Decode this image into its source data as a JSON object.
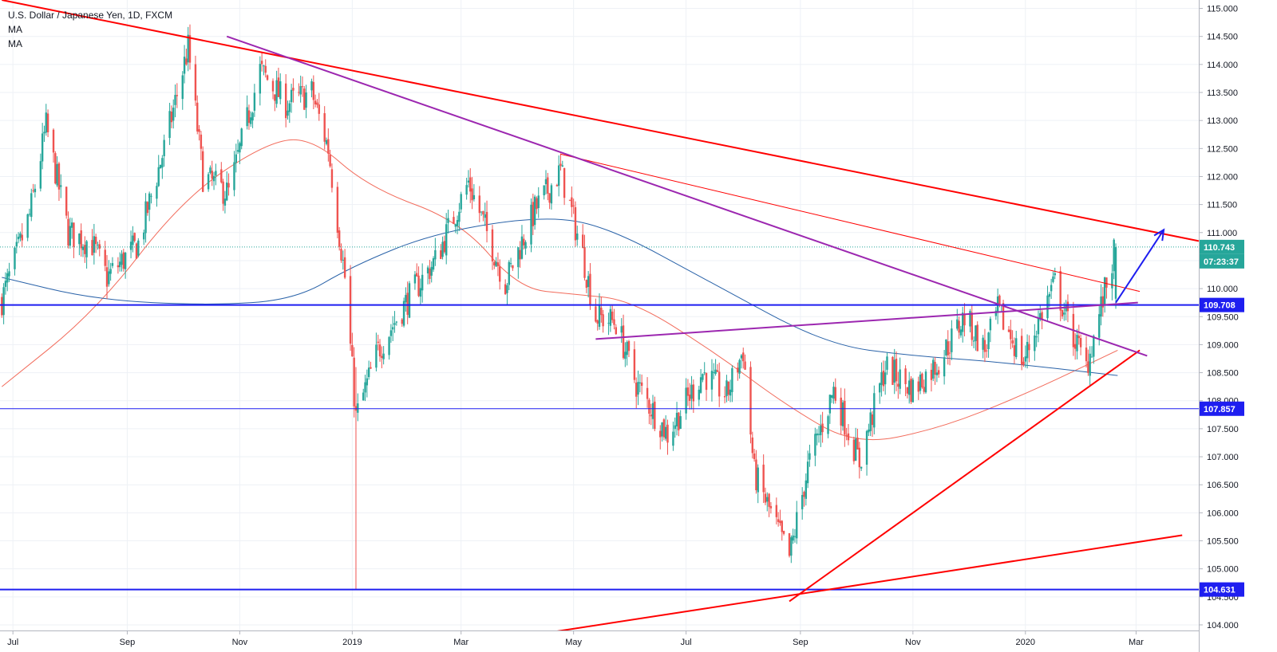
{
  "legend": {
    "symbol": "U.S. Dollar / Japanese Yen, 1D, FXCM",
    "indicators": [
      "MA",
      "MA"
    ]
  },
  "colors": {
    "up": "#26a69a",
    "down": "#ef5350",
    "trend_red": "#ff0000",
    "trend_purple": "#9c27b0",
    "ma_fast": "#f26b5b",
    "ma_slow": "#2962a8",
    "level_blue": "#1e1ef0",
    "last_price": "#26a69a"
  },
  "chart_data": {
    "type": "candlestick",
    "title": "U.S. Dollar / Japanese Yen, 1D, FXCM",
    "x_axis": {
      "ticks": [
        "Jul",
        "Sep",
        "Nov",
        "2019",
        "Mar",
        "May",
        "Jul",
        "Sep",
        "Nov",
        "2020",
        "Mar"
      ],
      "range": [
        "2018-06-24",
        "2020-04-04"
      ]
    },
    "y_axis": {
      "range": [
        103.9,
        115.15
      ],
      "ticks": [
        "115.000",
        "114.500",
        "114.000",
        "113.500",
        "113.000",
        "112.500",
        "112.000",
        "111.500",
        "111.000",
        "110.500",
        "110.000",
        "109.500",
        "109.000",
        "108.500",
        "108.000",
        "107.500",
        "107.000",
        "106.500",
        "106.000",
        "105.500",
        "105.000",
        "104.500",
        "104.000"
      ],
      "position": "right"
    },
    "price_path": [
      [
        "2018-06-25",
        109.8
      ],
      [
        "2018-07-10",
        111.3
      ],
      [
        "2018-07-19",
        112.9
      ],
      [
        "2018-07-31",
        111.0
      ],
      [
        "2018-08-13",
        110.8
      ],
      [
        "2018-08-21",
        110.2
      ],
      [
        "2018-09-07",
        110.8
      ],
      [
        "2018-09-21",
        112.5
      ],
      [
        "2018-10-04",
        114.3
      ],
      [
        "2018-10-12",
        112.0
      ],
      [
        "2018-10-26",
        111.7
      ],
      [
        "2018-11-12",
        113.9
      ],
      [
        "2018-11-26",
        113.3
      ],
      [
        "2018-12-10",
        113.5
      ],
      [
        "2018-12-19",
        112.5
      ],
      [
        "2018-12-28",
        110.2
      ],
      [
        "2019-01-03",
        107.7
      ],
      [
        "2019-01-15",
        108.9
      ],
      [
        "2019-01-31",
        109.8
      ],
      [
        "2019-02-15",
        110.5
      ],
      [
        "2019-03-05",
        111.9
      ],
      [
        "2019-03-25",
        110.1
      ],
      [
        "2019-04-10",
        111.4
      ],
      [
        "2019-04-24",
        112.1
      ],
      [
        "2019-05-06",
        110.6
      ],
      [
        "2019-05-13",
        109.5
      ],
      [
        "2019-05-24",
        109.4
      ],
      [
        "2019-06-04",
        108.3
      ],
      [
        "2019-06-21",
        107.4
      ],
      [
        "2019-07-10",
        108.5
      ],
      [
        "2019-07-23",
        108.1
      ],
      [
        "2019-08-01",
        108.9
      ],
      [
        "2019-08-07",
        106.7
      ],
      [
        "2019-08-26",
        105.2
      ],
      [
        "2019-09-05",
        106.8
      ],
      [
        "2019-09-19",
        108.2
      ],
      [
        "2019-10-03",
        106.9
      ],
      [
        "2019-10-17",
        108.6
      ],
      [
        "2019-11-01",
        108.2
      ],
      [
        "2019-11-15",
        108.7
      ],
      [
        "2019-11-29",
        109.5
      ],
      [
        "2019-12-10",
        108.9
      ],
      [
        "2019-12-17",
        109.6
      ],
      [
        "2019-12-31",
        108.7
      ],
      [
        "2020-01-09",
        109.5
      ],
      [
        "2020-01-17",
        110.1
      ],
      [
        "2020-01-24",
        109.4
      ],
      [
        "2020-02-03",
        108.6
      ],
      [
        "2020-02-12",
        109.8
      ],
      [
        "2020-02-19",
        110.74
      ]
    ],
    "series": [
      {
        "name": "MA",
        "points": [
          [
            "2018-06-25",
            108.25
          ],
          [
            "2018-08-15",
            109.6
          ],
          [
            "2018-10-01",
            111.6
          ],
          [
            "2018-11-15",
            112.6
          ],
          [
            "2018-12-10",
            112.7
          ],
          [
            "2019-01-10",
            111.8
          ],
          [
            "2019-03-01",
            111.2
          ],
          [
            "2019-04-01",
            110.0
          ],
          [
            "2019-05-01",
            109.9
          ],
          [
            "2019-06-01",
            109.8
          ],
          [
            "2019-07-15",
            108.9
          ],
          [
            "2019-08-25",
            107.9
          ],
          [
            "2019-10-01",
            107.2
          ],
          [
            "2019-11-15",
            107.5
          ],
          [
            "2019-12-31",
            108.1
          ],
          [
            "2020-02-20",
            108.9
          ]
        ]
      },
      {
        "name": "MA",
        "points": [
          [
            "2018-06-25",
            110.2
          ],
          [
            "2018-08-15",
            109.8
          ],
          [
            "2018-10-15",
            109.7
          ],
          [
            "2018-12-01",
            109.8
          ],
          [
            "2019-01-01",
            110.4
          ],
          [
            "2019-02-15",
            111.0
          ],
          [
            "2019-04-15",
            111.3
          ],
          [
            "2019-05-20",
            111.1
          ],
          [
            "2019-07-15",
            110.1
          ],
          [
            "2019-09-15",
            109.0
          ],
          [
            "2019-11-01",
            108.8
          ],
          [
            "2019-12-15",
            108.7
          ],
          [
            "2020-02-20",
            108.45
          ]
        ]
      }
    ],
    "horizontal_levels": [
      109.708,
      107.857,
      104.631
    ],
    "trendlines": [
      {
        "color": "red",
        "points": [
          [
            "2018-06-25",
            115.15
          ],
          [
            "2020-04-04",
            110.85
          ]
        ]
      },
      {
        "color": "red",
        "points": [
          [
            "2019-04-24",
            112.4
          ],
          [
            "2020-03-03",
            109.95
          ]
        ]
      },
      {
        "color": "red",
        "points": [
          [
            "2019-08-26",
            104.42
          ],
          [
            "2020-03-03",
            108.9
          ]
        ]
      },
      {
        "color": "red",
        "points": [
          [
            "2019-04-15",
            103.85
          ],
          [
            "2020-03-26",
            105.6
          ]
        ]
      },
      {
        "color": "purple",
        "points": [
          [
            "2018-10-25",
            114.5
          ],
          [
            "2020-03-07",
            108.8
          ]
        ]
      },
      {
        "color": "purple",
        "points": [
          [
            "2019-05-13",
            109.1
          ],
          [
            "2020-03-02",
            109.75
          ]
        ]
      }
    ],
    "projection_arrow": [
      [
        "2020-02-19",
        109.75
      ],
      [
        "2020-03-16",
        111.05
      ]
    ],
    "price_tags": {
      "last_price": "110.743",
      "countdown": "07:23:37",
      "level_1": "109.708",
      "level_2": "107.857",
      "level_3": "104.631"
    },
    "grid": true
  }
}
